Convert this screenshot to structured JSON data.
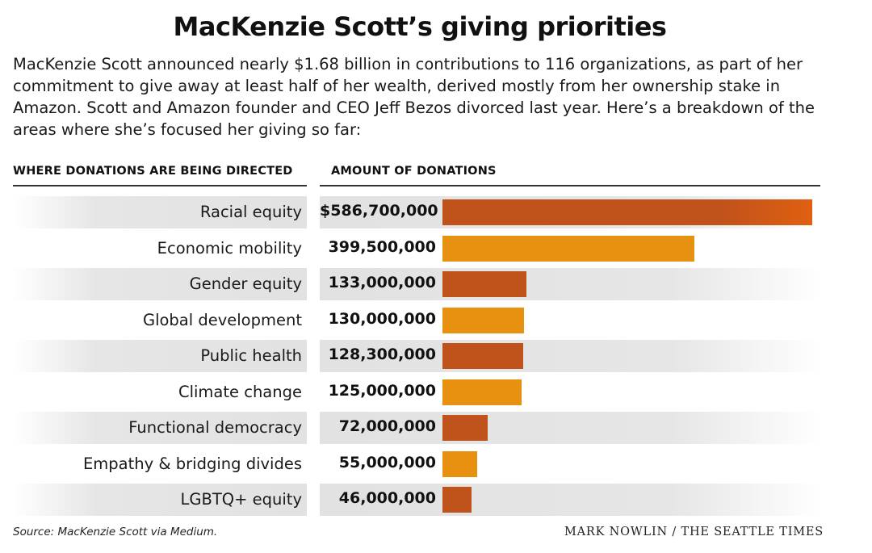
{
  "title": "MacKenzie Scott’s giving priorities",
  "intro": "MacKenzie Scott announced nearly $1.68 billion in contributions to 116 organizations, as part of her commitment to give away at least half of her wealth, derived mostly from her ownership stake in Amazon. Scott and Amazon founder and CEO Jeff Bezos divorced last year. Here’s a breakdown of the areas where she’s focused her giving so far:",
  "footer": {
    "source": "Source: MacKenzie Scott via Medium.",
    "credit": "MARK NOWLIN / THE SEATTLE TIMES"
  },
  "colors": {
    "dark": "#c0521c",
    "light": "#e8900f",
    "top_end": "#e06010"
  },
  "chart_data": {
    "type": "bar",
    "orientation": "horizontal",
    "title": "MacKenzie Scott’s giving priorities",
    "xlabel": "AMOUNT OF DONATIONS",
    "ylabel": "WHERE DONATIONS ARE BEING DIRECTED",
    "xlim": [
      0,
      586700000
    ],
    "categories": [
      "Racial equity",
      "Economic mobility",
      "Gender equity",
      "Global development",
      "Public health",
      "Climate change",
      "Functional democracy",
      "Empathy & bridging divides",
      "LGBTQ+ equity"
    ],
    "values": [
      586700000,
      399500000,
      133000000,
      130000000,
      128300000,
      125000000,
      72000000,
      55000000,
      46000000
    ],
    "value_labels": [
      "$586,700,000",
      "399,500,000",
      "133,000,000",
      "130,000,000",
      "128,300,000",
      "125,000,000",
      "72,000,000",
      "55,000,000",
      "46,000,000"
    ]
  }
}
